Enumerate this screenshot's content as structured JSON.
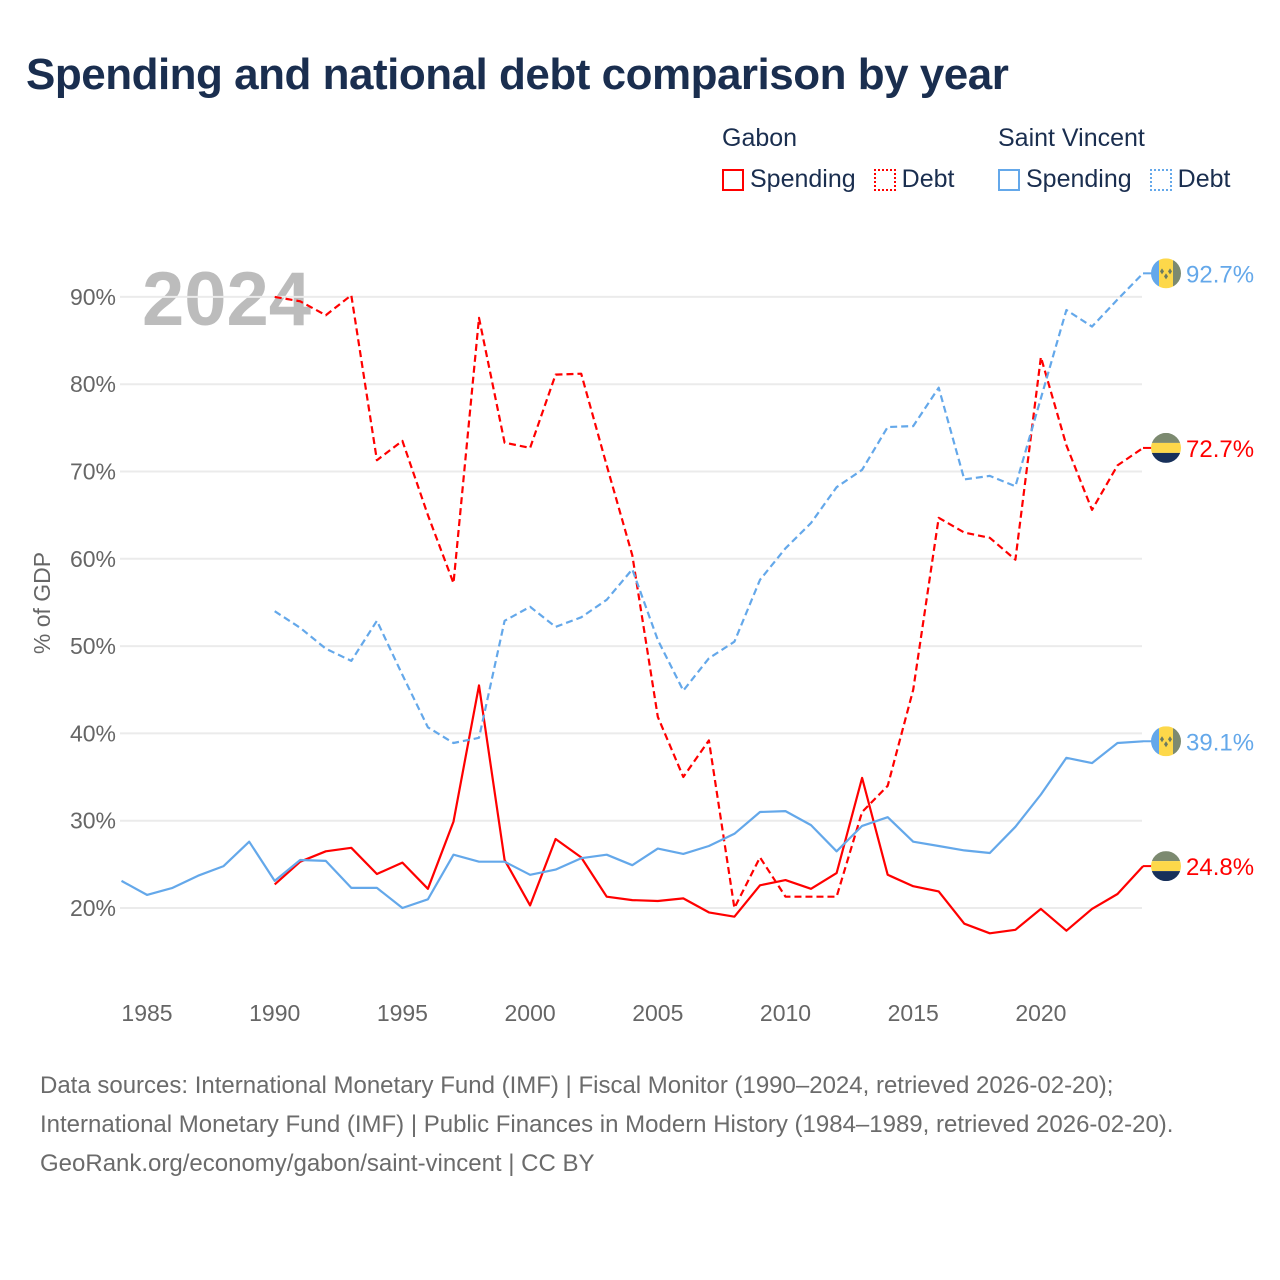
{
  "title": "Spending and national debt comparison by year",
  "legend": {
    "groups": [
      {
        "name": "Gabon",
        "items": [
          "Spending",
          "Debt"
        ],
        "color": "#ff0000"
      },
      {
        "name": "Saint Vincent",
        "items": [
          "Spending",
          "Debt"
        ],
        "color": "#64a8ea"
      }
    ]
  },
  "footer": {
    "sources": "Data sources: International Monetary Fund (IMF) | Fiscal Monitor (1990–2024, retrieved 2026-02-20); International Monetary Fund (IMF) | Public Finances in Modern History (1984–1989, retrieved 2026-02-20).",
    "credit": "GeoRank.org/economy/gabon/saint-vincent | CC BY"
  },
  "chart_data": {
    "type": "line",
    "title": "Spending and national debt comparison by year",
    "year_overlay": "2024",
    "ylabel": "% of GDP",
    "xlabel": "",
    "ylim": [
      20,
      90
    ],
    "xlim": [
      1984,
      2024
    ],
    "yticks": [
      20,
      30,
      40,
      50,
      60,
      70,
      80,
      90
    ],
    "ytick_labels": [
      "20%",
      "30%",
      "40%",
      "50%",
      "60%",
      "70%",
      "80%",
      "90%"
    ],
    "xticks": [
      1985,
      1990,
      1995,
      2000,
      2005,
      2010,
      2015,
      2020
    ],
    "xtick_labels": [
      "1985",
      "1990",
      "1995",
      "2000",
      "2005",
      "2010",
      "2015",
      "2020"
    ],
    "grid": true,
    "legend_position": "top-right",
    "series": [
      {
        "name": "Gabon Spending",
        "country": "Gabon",
        "metric": "Spending",
        "style": "solid",
        "color": "#ff0000",
        "start_year": 1990,
        "end_label": "24.8%",
        "values": [
          22.7,
          25.3,
          26.5,
          26.9,
          23.9,
          25.2,
          22.2,
          29.9,
          45.5,
          25.5,
          20.3,
          27.9,
          25.8,
          21.3,
          20.9,
          20.8,
          21.1,
          19.5,
          19.0,
          22.6,
          23.2,
          22.2,
          24.0,
          34.9,
          23.8,
          22.5,
          21.9,
          18.2,
          17.1,
          17.5,
          19.9,
          17.4,
          19.9,
          21.6,
          24.8
        ]
      },
      {
        "name": "Gabon Debt",
        "country": "Gabon",
        "metric": "Debt",
        "style": "dashed",
        "color": "#ff0000",
        "start_year": 1990,
        "end_label": "72.7%",
        "values": [
          90.0,
          89.5,
          87.9,
          90.2,
          71.3,
          73.5,
          65.0,
          57.2,
          87.6,
          73.3,
          72.7,
          81.1,
          81.2,
          70.7,
          60.4,
          41.9,
          35.0,
          39.2,
          20.0,
          25.8,
          21.3,
          21.3,
          21.3,
          31.0,
          34.0,
          45.0,
          64.7,
          63.0,
          62.4,
          59.9,
          83.1,
          73.0,
          65.6,
          70.7,
          72.7
        ]
      },
      {
        "name": "Saint Vincent Spending",
        "country": "Saint Vincent",
        "metric": "Spending",
        "style": "solid",
        "color": "#64a8ea",
        "start_year": 1984,
        "end_label": "39.1%",
        "values": [
          23.1,
          21.5,
          22.3,
          23.7,
          24.8,
          27.6,
          23.1,
          25.5,
          25.4,
          22.3,
          22.3,
          20.0,
          21.0,
          26.1,
          25.3,
          25.3,
          23.8,
          24.4,
          25.7,
          26.1,
          24.9,
          26.8,
          26.2,
          27.1,
          28.5,
          31.0,
          31.1,
          29.5,
          26.5,
          29.4,
          30.4,
          27.6,
          27.1,
          26.6,
          26.3,
          29.3,
          33.0,
          37.2,
          36.6,
          38.9,
          39.1
        ]
      },
      {
        "name": "Saint Vincent Debt",
        "country": "Saint Vincent",
        "metric": "Debt",
        "style": "dashed",
        "color": "#64a8ea",
        "start_year": 1990,
        "end_label": "92.7%",
        "values": [
          54.0,
          52.1,
          49.7,
          48.3,
          52.9,
          46.7,
          40.7,
          38.9,
          39.5,
          52.9,
          54.5,
          52.2,
          53.3,
          55.3,
          58.8,
          50.7,
          44.9,
          48.6,
          50.5,
          57.6,
          61.2,
          64.1,
          68.2,
          70.2,
          75.1,
          75.2,
          79.6,
          69.1,
          69.5,
          68.3,
          78.4,
          88.5,
          86.6,
          89.7,
          92.7
        ]
      }
    ]
  }
}
